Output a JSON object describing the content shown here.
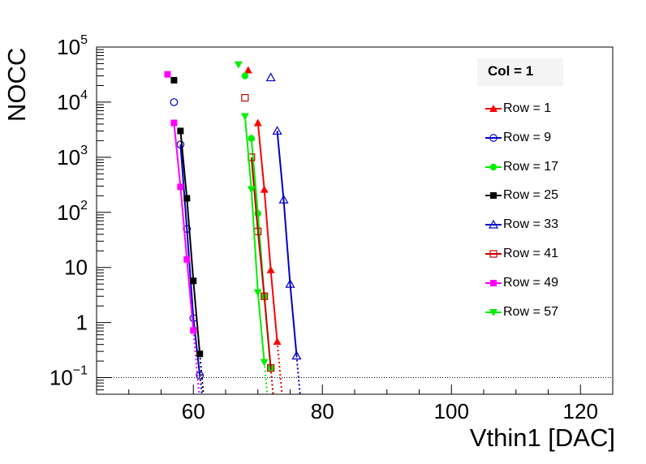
{
  "chart_data": {
    "type": "line",
    "title": "",
    "xlabel": "Vthin1 [DAC]",
    "ylabel": "NOCC",
    "xlim": [
      45,
      125
    ],
    "ylim": [
      0.05,
      100000
    ],
    "y_scale": "log",
    "x_ticks": [
      "60",
      "80",
      "100",
      "120"
    ],
    "y_ticks": [
      {
        "value": 100000,
        "base": "10",
        "exp": "5"
      },
      {
        "value": 10000,
        "base": "10",
        "exp": "4"
      },
      {
        "value": 1000,
        "base": "10",
        "exp": "3"
      },
      {
        "value": 100,
        "base": "10",
        "exp": "2"
      },
      {
        "value": 10,
        "base": "10",
        "exp": ""
      },
      {
        "value": 1,
        "base": "1",
        "exp": ""
      },
      {
        "value": 0.1,
        "base": "10",
        "exp": "−1"
      }
    ],
    "threshold_line": 0.1,
    "grid": false,
    "legend_title": "Col = 1",
    "legend_position": "top-right",
    "series": [
      {
        "name": "Row = 1",
        "color": "#ff0000",
        "marker": "triangle-up-filled",
        "points": [
          [
            68.5,
            38000
          ],
          [
            70,
            4200
          ],
          [
            71,
            260
          ],
          [
            72,
            9
          ],
          [
            73,
            0.45
          ]
        ],
        "fit_x": [
          70,
          73
        ],
        "tail_x": [
          73,
          73.3
        ]
      },
      {
        "name": "Row = 9",
        "color": "#0000cc",
        "marker": "circle-open",
        "points": [
          [
            57,
            10000
          ],
          [
            58,
            1700
          ],
          [
            59,
            50
          ],
          [
            60,
            1.2
          ],
          [
            61,
            0.11
          ]
        ],
        "fit_x": [
          58,
          61
        ],
        "tail_x": [
          61,
          61.3
        ]
      },
      {
        "name": "Row = 17",
        "color": "#00ee00",
        "marker": "circle-filled",
        "points": [
          [
            68,
            30000
          ],
          [
            69,
            2200
          ],
          [
            70,
            95
          ],
          [
            71,
            3
          ],
          [
            72,
            0.15
          ]
        ],
        "fit_x": [
          69,
          72
        ],
        "tail_x": [
          72,
          72.3
        ]
      },
      {
        "name": "Row = 25",
        "color": "#000000",
        "marker": "square-filled",
        "points": [
          [
            57,
            25000
          ],
          [
            58,
            3000
          ],
          [
            59,
            180
          ],
          [
            60,
            5.7
          ],
          [
            61,
            0.27
          ]
        ],
        "fit_x": [
          58,
          61
        ],
        "tail_x": [
          61,
          61.3
        ]
      },
      {
        "name": "Row = 33",
        "color": "#0000cc",
        "marker": "triangle-up-open",
        "points": [
          [
            72,
            28000
          ],
          [
            73,
            3000
          ],
          [
            74,
            170
          ],
          [
            75,
            5
          ],
          [
            76,
            0.25
          ]
        ],
        "fit_x": [
          73,
          76
        ],
        "tail_x": [
          76,
          76.6
        ]
      },
      {
        "name": "Row = 41",
        "color": "#cc0000",
        "marker": "square-open",
        "points": [
          [
            68,
            12000
          ],
          [
            69,
            1000
          ],
          [
            70,
            45
          ],
          [
            71,
            3
          ],
          [
            72,
            0.15
          ]
        ],
        "fit_x": [
          69,
          72
        ],
        "tail_x": [
          72,
          72.3
        ]
      },
      {
        "name": "Row = 49",
        "color": "#ff00ff",
        "marker": "square-filled",
        "points": [
          [
            56,
            32000
          ],
          [
            57,
            4200
          ],
          [
            58,
            290
          ],
          [
            59,
            14
          ],
          [
            60,
            0.72
          ]
        ],
        "fit_x": [
          57,
          60
        ],
        "tail_x": [
          60,
          60.3
        ]
      },
      {
        "name": "Row = 57",
        "color": "#00ee00",
        "marker": "triangle-down-filled",
        "points": [
          [
            67,
            48000
          ],
          [
            68,
            5500
          ],
          [
            69,
            260
          ],
          [
            70,
            3.5
          ],
          [
            71,
            0.19
          ]
        ],
        "fit_x": [
          68,
          71
        ],
        "tail_x": [
          71,
          71.3
        ]
      }
    ]
  }
}
